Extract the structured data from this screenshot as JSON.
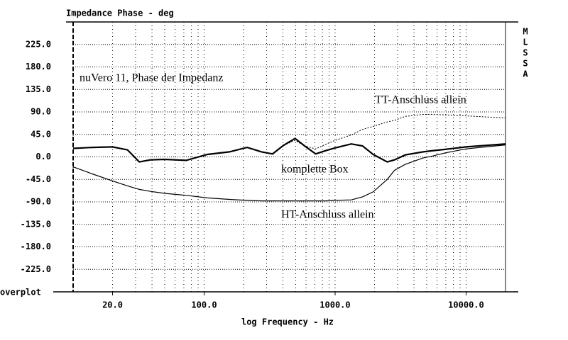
{
  "chart_data": {
    "type": "line",
    "title": "Impedance Phase - deg",
    "subtitle": "nuVero 11, Phase der Impedanz",
    "x_label": "log Frequency - Hz",
    "side_label": "MLSSA",
    "corner_label": "overplot",
    "log_x": true,
    "grid": true,
    "xlim": [
      10,
      20000
    ],
    "ylim": [
      -270,
      270
    ],
    "xticks": [
      {
        "value": 20,
        "label": "20.0"
      },
      {
        "value": 100,
        "label": "100.0"
      },
      {
        "value": 1000,
        "label": "1000.0"
      },
      {
        "value": 10000,
        "label": "10000.0"
      }
    ],
    "xgrid": [
      10,
      20,
      30,
      40,
      50,
      60,
      70,
      80,
      90,
      100,
      200,
      300,
      400,
      500,
      600,
      700,
      800,
      900,
      1000,
      2000,
      3000,
      4000,
      5000,
      6000,
      7000,
      8000,
      9000,
      10000
    ],
    "yticks": [
      {
        "value": 225,
        "label": "225.0"
      },
      {
        "value": 180,
        "label": "180.0"
      },
      {
        "value": 135,
        "label": "135.0"
      },
      {
        "value": 90,
        "label": "90.0"
      },
      {
        "value": 45,
        "label": "45.0"
      },
      {
        "value": 0,
        "label": "0.0"
      },
      {
        "value": -45,
        "label": "-45.0"
      },
      {
        "value": -90,
        "label": "-90.0"
      },
      {
        "value": -135,
        "label": "-135.0"
      },
      {
        "value": -180,
        "label": "-180.0"
      },
      {
        "value": -225,
        "label": "-225.0"
      }
    ],
    "x": [
      10,
      14,
      20,
      26,
      32,
      39,
      50,
      73,
      106,
      156,
      213,
      275,
      333,
      403,
      495,
      585,
      711,
      860,
      1000,
      1330,
      1620,
      1950,
      2500,
      2840,
      3430,
      4700,
      5400,
      6900,
      10000,
      20000
    ],
    "series": [
      {
        "name": "TT-Anschluss allein",
        "color": "#000000",
        "width": 1,
        "dash": "2 2",
        "values": [
          17,
          19,
          20,
          14,
          -10,
          -6,
          -5,
          -7,
          5,
          10,
          19,
          10,
          6,
          23,
          33,
          22,
          16,
          26,
          33,
          44,
          55,
          61,
          70,
          73,
          81,
          85,
          85,
          84,
          82,
          78
        ]
      },
      {
        "name": "komplette Box",
        "color": "#000000",
        "width": 2.2,
        "dash": "none",
        "values": [
          17,
          19,
          20,
          14,
          -10,
          -6,
          -5,
          -7,
          5,
          10,
          19,
          10,
          6,
          23,
          37,
          22,
          6,
          13,
          18,
          26,
          22,
          5,
          -10,
          -6,
          4,
          10,
          12,
          15,
          20,
          26
        ]
      },
      {
        "name": "HT-Anschluss allein",
        "color": "#000000",
        "width": 1.2,
        "dash": "none",
        "values": [
          -20,
          -34,
          -48,
          -58,
          -65,
          -69,
          -73,
          -77,
          -82,
          -85,
          -87,
          -88,
          -88,
          -88,
          -88,
          -88,
          -88,
          -88,
          -87,
          -86,
          -80,
          -70,
          -45,
          -27,
          -15,
          -2,
          1,
          8,
          16,
          24
        ]
      }
    ]
  }
}
